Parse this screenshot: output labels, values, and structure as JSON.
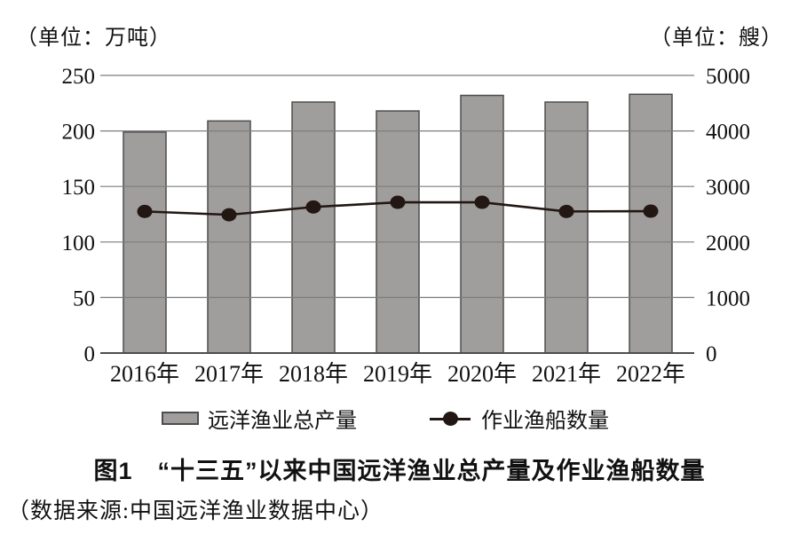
{
  "figure": {
    "title": "图1　“十三五”以来中国远洋渔业总产量及作业渔船数量",
    "source": "（数据来源:中国远洋渔业数据中心）"
  },
  "chart_data": {
    "type": "bar",
    "subtype": "combo_bar_line_dual_axis",
    "title": "图1　“十三五”以来中国远洋渔业总产量及作业渔船数量",
    "categories": [
      "2016年",
      "2017年",
      "2018年",
      "2019年",
      "2020年",
      "2021年",
      "2022年"
    ],
    "left_unit": "（单位：万吨）",
    "right_unit": "（单位：艘）",
    "series": [
      {
        "name": "远洋渔业总产量",
        "type": "bar",
        "axis": "left",
        "values": [
          199,
          209,
          226,
          218,
          232,
          226,
          233
        ],
        "color": "#a09e9c",
        "border_color": "#4d4d4d"
      },
      {
        "name": "作业渔船数量",
        "type": "line",
        "axis": "right",
        "values": [
          2550,
          2490,
          2630,
          2715,
          2715,
          2550,
          2555
        ],
        "color": "#231714"
      }
    ],
    "left_axis": {
      "min": 0,
      "max": 250,
      "ticks": [
        0,
        50,
        100,
        150,
        200,
        250
      ]
    },
    "right_axis": {
      "min": 0,
      "max": 5000,
      "ticks": [
        0,
        1000,
        2000,
        3000,
        4000,
        5000
      ]
    },
    "grid": true,
    "legend_position": "bottom"
  }
}
